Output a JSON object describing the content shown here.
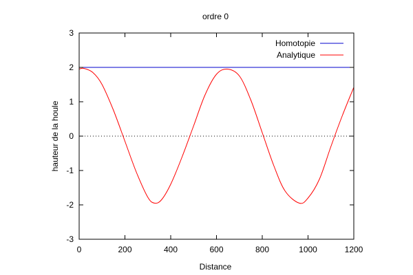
{
  "chart_data": {
    "type": "line",
    "title": "ordre 0",
    "xlabel": "Distance",
    "ylabel": "hauteur de la houle",
    "xlim": [
      0,
      1200
    ],
    "ylim": [
      -3,
      3
    ],
    "xticks": [
      0,
      200,
      400,
      600,
      800,
      1000,
      1200
    ],
    "yticks": [
      -3,
      -2,
      -1,
      0,
      1,
      2,
      3
    ],
    "grid": false,
    "legend_position": "top-right",
    "zero_line": {
      "y": 0,
      "style": "dotted",
      "color": "#000000"
    },
    "series": [
      {
        "name": "Homotopie",
        "color": "#0000cc",
        "x": [
          0,
          1200
        ],
        "y": [
          2,
          2
        ]
      },
      {
        "name": "Analytique",
        "color": "#ff0000",
        "x": [
          0,
          20,
          60,
          100,
          150,
          200,
          250,
          300,
          330,
          360,
          400,
          450,
          500,
          550,
          600,
          647,
          700,
          750,
          800,
          850,
          900,
          962,
          1000,
          1050,
          1100,
          1150,
          1200
        ],
        "y": [
          1.95,
          1.97,
          1.85,
          1.5,
          0.75,
          -0.15,
          -1.05,
          -1.78,
          -1.95,
          -1.85,
          -1.4,
          -0.6,
          0.3,
          1.2,
          1.8,
          1.95,
          1.75,
          1.05,
          0.1,
          -0.85,
          -1.6,
          -1.95,
          -1.8,
          -1.25,
          -0.3,
          0.6,
          1.42
        ]
      }
    ]
  }
}
